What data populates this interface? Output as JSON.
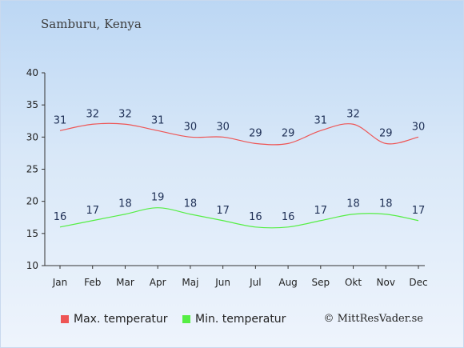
{
  "header": {
    "title": "Samburu, Kenya"
  },
  "credit": "© MittResVader.se",
  "colors": {
    "max": "#ee5555",
    "min": "#55ee44"
  },
  "chart_data": {
    "type": "line",
    "title": "Samburu, Kenya",
    "categories": [
      "Jan",
      "Feb",
      "Mar",
      "Apr",
      "Maj",
      "Jun",
      "Jul",
      "Aug",
      "Sep",
      "Okt",
      "Nov",
      "Dec"
    ],
    "series": [
      {
        "name": "Max. temperatur",
        "values": [
          31,
          32,
          32,
          31,
          30,
          30,
          29,
          29,
          31,
          32,
          29,
          30
        ]
      },
      {
        "name": "Min. temperatur",
        "values": [
          16,
          17,
          18,
          19,
          18,
          17,
          16,
          16,
          17,
          18,
          18,
          17
        ]
      }
    ],
    "ylim": [
      10,
      40
    ],
    "yticks": [
      10,
      15,
      20,
      25,
      30,
      35,
      40
    ],
    "grid": false,
    "legend_position": "bottom-left"
  }
}
